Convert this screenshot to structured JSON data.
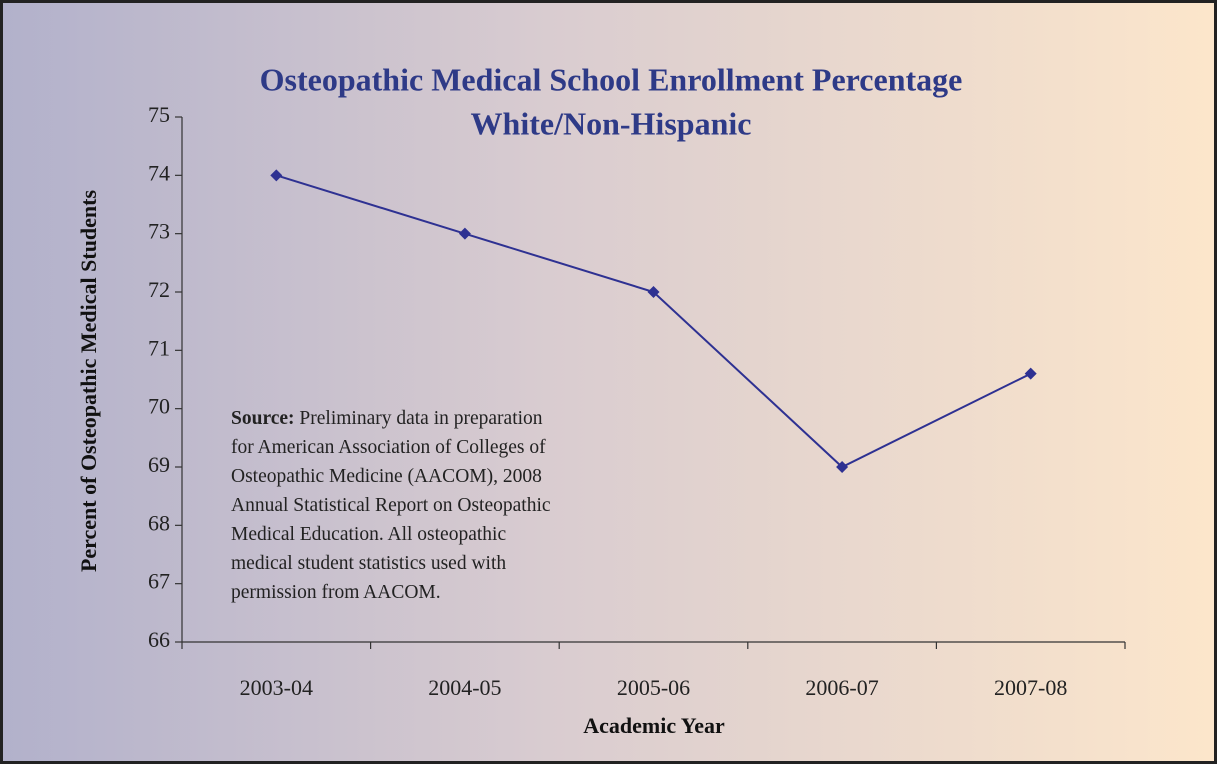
{
  "chart_data": {
    "type": "line",
    "title": [
      "Osteopathic Medical School Enrollment Percentage",
      "White/Non-Hispanic"
    ],
    "x_label": "Academic Year",
    "y_label": "Percent of Osteopathic Medical Students",
    "categories": [
      "2003-04",
      "2004-05",
      "2005-06",
      "2006-07",
      "2007-08"
    ],
    "series": [
      {
        "name": "White/Non-Hispanic",
        "color": "#2e3192",
        "values": [
          74,
          73,
          72,
          69,
          70.6
        ]
      }
    ],
    "ylim": [
      66,
      75
    ],
    "yticks": [
      66,
      67,
      68,
      69,
      70,
      71,
      72,
      73,
      74,
      75
    ],
    "source_label": "Source:",
    "source_lines": [
      "Preliminary data in preparation",
      "for American Association of Colleges of",
      "Osteopathic Medicine (AACOM), 2008",
      "Annual Statistical Report on Osteopathic",
      "Medical Education. All osteopathic",
      "medical student statistics used with",
      "permission from AACOM."
    ]
  }
}
